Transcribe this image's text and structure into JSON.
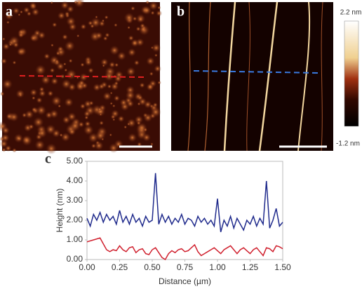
{
  "panels": {
    "a": "a",
    "b": "b",
    "c": "c"
  },
  "colorbar": {
    "max_label": "2.2 nm",
    "min_label": "-1.2 nm"
  },
  "chart_data": {
    "type": "line",
    "xlabel": "Distance (µm)",
    "ylabel": "Height (nm)",
    "x": [
      0,
      0.025,
      0.05,
      0.075,
      0.1,
      0.125,
      0.15,
      0.175,
      0.2,
      0.225,
      0.25,
      0.275,
      0.3,
      0.325,
      0.35,
      0.375,
      0.4,
      0.425,
      0.45,
      0.475,
      0.5,
      0.525,
      0.55,
      0.575,
      0.6,
      0.625,
      0.65,
      0.675,
      0.7,
      0.725,
      0.75,
      0.775,
      0.8,
      0.825,
      0.85,
      0.875,
      0.9,
      0.925,
      0.95,
      0.975,
      1.0,
      1.025,
      1.05,
      1.075,
      1.1,
      1.125,
      1.15,
      1.175,
      1.2,
      1.225,
      1.25,
      1.275,
      1.3,
      1.325,
      1.35,
      1.375,
      1.4,
      1.425,
      1.45,
      1.475,
      1.5
    ],
    "series": [
      {
        "color": "#1f2a8c",
        "values": [
          2.1,
          1.7,
          2.3,
          2.0,
          2.4,
          1.9,
          2.3,
          2.0,
          2.2,
          1.8,
          2.5,
          1.9,
          2.2,
          1.8,
          2.3,
          1.9,
          2.1,
          1.7,
          2.2,
          1.9,
          2.0,
          4.4,
          1.8,
          2.3,
          1.9,
          2.2,
          1.8,
          2.1,
          1.9,
          2.3,
          1.8,
          2.1,
          2.0,
          1.7,
          2.2,
          1.9,
          2.1,
          1.8,
          2.0,
          1.7,
          3.1,
          1.4,
          2.0,
          1.7,
          2.2,
          1.6,
          2.1,
          1.8,
          1.5,
          2.0,
          1.8,
          2.2,
          1.7,
          2.1,
          1.8,
          4.0,
          1.6,
          2.0,
          2.6,
          1.7,
          1.9
        ]
      },
      {
        "color": "#d0202e",
        "values": [
          0.9,
          0.95,
          1.0,
          1.05,
          1.1,
          0.8,
          0.5,
          0.4,
          0.5,
          0.45,
          0.7,
          0.5,
          0.4,
          0.6,
          0.65,
          0.35,
          0.5,
          0.55,
          0.3,
          0.25,
          0.5,
          0.6,
          0.35,
          0.1,
          0.0,
          0.3,
          0.45,
          0.35,
          0.5,
          0.55,
          0.4,
          0.45,
          0.6,
          0.75,
          0.4,
          0.2,
          0.3,
          0.4,
          0.5,
          0.6,
          0.45,
          0.3,
          0.5,
          0.6,
          0.7,
          0.5,
          0.3,
          0.5,
          0.6,
          0.45,
          0.3,
          0.5,
          0.6,
          0.4,
          0.2,
          0.6,
          0.55,
          0.4,
          0.7,
          0.65,
          0.55
        ]
      }
    ],
    "xlim": [
      0,
      1.5
    ],
    "xticks": [
      {
        "value": 0,
        "label": "0.00"
      },
      {
        "value": 0.25,
        "label": "0.25"
      },
      {
        "value": 0.5,
        "label": "0.50"
      },
      {
        "value": 0.75,
        "label": "0.75"
      },
      {
        "value": 1.0,
        "label": "1.00"
      },
      {
        "value": 1.25,
        "label": "1.25"
      },
      {
        "value": 1.5,
        "label": "1.50"
      }
    ],
    "ylim": [
      0,
      5
    ],
    "yticks": [
      {
        "value": 0,
        "label": "0.00"
      },
      {
        "value": 1,
        "label": "1.00"
      },
      {
        "value": 2,
        "label": "2.00"
      },
      {
        "value": 3,
        "label": "3.00"
      },
      {
        "value": 4,
        "label": "4.00"
      },
      {
        "value": 5,
        "label": "5.00"
      }
    ],
    "grid": false
  }
}
